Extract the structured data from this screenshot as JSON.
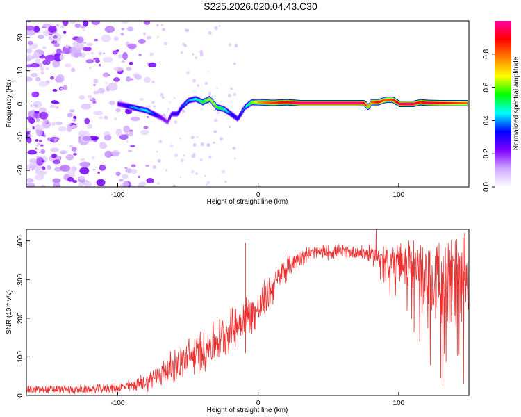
{
  "page": {
    "title": "S225.2026.020.04.43.C30"
  },
  "chart_data": [
    {
      "type": "heatmap",
      "name": "spectrogram",
      "xlabel": "Height of straight line (km)",
      "ylabel": "Frequency (Hz)",
      "xlim": [
        -165,
        150
      ],
      "ylim": [
        -25,
        25
      ],
      "x_ticks": [
        -100,
        0,
        100
      ],
      "y_ticks": [
        -20,
        -10,
        0,
        10,
        20
      ],
      "colorbar": {
        "label": "Normalized spectral amplitude",
        "range": [
          0,
          1
        ],
        "ticks": [
          "0.0",
          "0.2",
          "0.4",
          "0.6",
          "0.8"
        ],
        "colors": [
          "#ffffff",
          "#cfa8ff",
          "#7f00ff",
          "#0000ff",
          "#00ffff",
          "#00ff00",
          "#ffff00",
          "#ff8000",
          "#ff0000",
          "#ff00a0"
        ]
      },
      "ridge": {
        "x": [
          -100,
          -95,
          -90,
          -85,
          -80,
          -75,
          -70,
          -65,
          -62,
          -58,
          -55,
          -50,
          -45,
          -40,
          -35,
          -30,
          -25,
          -20,
          -15,
          -10,
          -5,
          0,
          10,
          20,
          30,
          40,
          50,
          60,
          70,
          75,
          78,
          80,
          85,
          90,
          95,
          100,
          105,
          110,
          115,
          120,
          130,
          140,
          148
        ],
        "freq": [
          0,
          -0.5,
          -1,
          -1.5,
          -2,
          -3,
          -4,
          -5.5,
          -3,
          -3,
          -1,
          1,
          1.5,
          0.5,
          1.5,
          -1,
          -1.5,
          -3,
          -4.5,
          -1,
          0.5,
          0.5,
          0.3,
          0.5,
          0.2,
          0.2,
          0.2,
          0.2,
          0.2,
          0.2,
          -1,
          0.5,
          0.5,
          1.2,
          1.3,
          0,
          0,
          0,
          0.5,
          0.3,
          0.2,
          0.2,
          0.2
        ],
        "amp": [
          0.25,
          0.3,
          0.4,
          0.4,
          0.45,
          0.35,
          0.25,
          0.2,
          0.3,
          0.3,
          0.35,
          0.4,
          0.45,
          0.55,
          0.65,
          0.6,
          0.5,
          0.35,
          0.3,
          0.4,
          0.6,
          0.75,
          0.85,
          0.9,
          1.0,
          1.0,
          1.0,
          1.0,
          1.0,
          0.95,
          0.7,
          0.8,
          0.9,
          0.8,
          0.85,
          0.95,
          1.0,
          1.0,
          0.85,
          0.95,
          0.9,
          0.85,
          0.8
        ]
      },
      "noise_region_x": [
        -165,
        -75
      ]
    },
    {
      "type": "line",
      "name": "snr",
      "xlabel": "Height of straight line (km)",
      "ylabel": "SNR (10 * v/v)",
      "xlim": [
        -165,
        150
      ],
      "ylim": [
        0,
        430
      ],
      "x_ticks": [
        -100,
        0,
        100
      ],
      "y_ticks": [
        0,
        100,
        200,
        300,
        400
      ],
      "color": "#ee3030",
      "envelope": {
        "x": [
          -165,
          -120,
          -100,
          -90,
          -80,
          -70,
          -60,
          -50,
          -40,
          -30,
          -20,
          -10,
          0,
          10,
          20,
          30,
          40,
          50,
          60,
          70,
          80,
          90,
          100,
          110,
          120,
          130,
          140,
          150
        ],
        "mean": [
          15,
          15,
          20,
          25,
          35,
          55,
          75,
          95,
          115,
          140,
          170,
          200,
          220,
          280,
          330,
          360,
          370,
          372,
          372,
          372,
          365,
          355,
          345,
          330,
          315,
          295,
          285,
          285
        ],
        "spread": [
          12,
          12,
          14,
          18,
          25,
          35,
          45,
          55,
          60,
          60,
          60,
          60,
          55,
          50,
          35,
          25,
          20,
          20,
          20,
          20,
          25,
          40,
          55,
          75,
          100,
          130,
          140,
          130
        ]
      },
      "spikes": [
        {
          "x": -9,
          "y": 395
        },
        {
          "x": -9,
          "y": 110
        },
        {
          "x": 84,
          "y": 430
        },
        {
          "x": 130,
          "y": 45
        },
        {
          "x": 115,
          "y": 140
        }
      ]
    }
  ]
}
